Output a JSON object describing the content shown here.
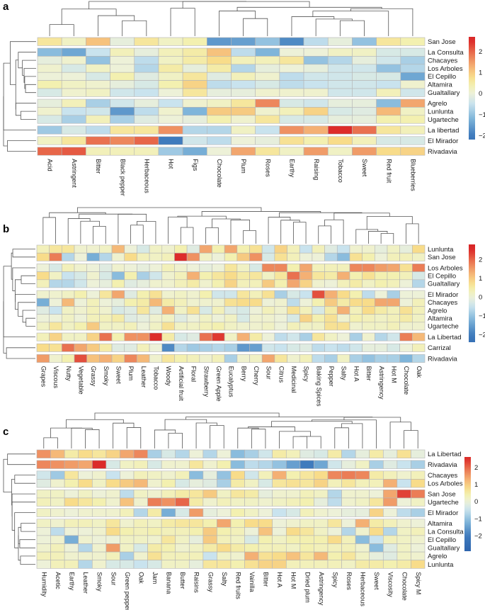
{
  "chart_data": [
    {
      "type": "heatmap",
      "panel_label": "a",
      "rows": [
        "San Jose",
        "La Consulta",
        "Chacayes",
        "Los Arboles",
        "El Cepillo",
        "Altamira",
        "Gualtallary",
        "Agrelo",
        "Lunlunta",
        "Ugarteche",
        "La libertad",
        "El Mirador",
        "Rivadavia"
      ],
      "row_groups": [
        1,
        6,
        3,
        1,
        1,
        1
      ],
      "columns": [
        "Acid",
        "Astringent",
        "Bitter",
        "Black pepper",
        "Herbaceous",
        "Hot",
        "Figs",
        "Chocolate",
        "Plum",
        "Roses",
        "Earthy",
        "Raising",
        "Tobacco",
        "Sweet",
        "Red fruit",
        "Blueberries"
      ],
      "values": [
        [
          0.6,
          0.2,
          1.1,
          -0.1,
          0.6,
          0.2,
          0.4,
          -1.6,
          -1.5,
          -1.0,
          -1.8,
          -0.6,
          -0.1,
          -1.0,
          0.6,
          0.4
        ],
        [
          -1.1,
          -1.4,
          -0.5,
          0.3,
          -0.1,
          0.3,
          0.5,
          1.1,
          -0.6,
          -1.2,
          0,
          0,
          0.2,
          0.2,
          -0.3,
          -0.3
        ],
        [
          -0.1,
          0.1,
          -1.0,
          0,
          -0.6,
          0.2,
          0.5,
          0.8,
          0.3,
          0.3,
          0.6,
          -1.0,
          -0.7,
          -0.1,
          -0.4,
          -0.8
        ],
        [
          0.1,
          -0.3,
          0.2,
          0,
          -0.7,
          0.5,
          -0.1,
          0.5,
          -0.7,
          -0.1,
          0,
          -0.1,
          -0.4,
          -0.4,
          -1.0,
          -0.7
        ],
        [
          0,
          0,
          -0.3,
          0.4,
          -0.2,
          0.2,
          0.6,
          -0.2,
          0.3,
          0.1,
          -0.6,
          -0.4,
          -0.4,
          -0.3,
          -0.3,
          -1.4
        ],
        [
          0.4,
          0.2,
          0.1,
          -0.1,
          -0.3,
          0.4,
          0.9,
          -0.6,
          -0.5,
          -0.3,
          -0.6,
          -0.5,
          -0.4,
          -0.4,
          -0.5,
          0.1
        ],
        [
          -0.3,
          0.1,
          0.2,
          -0.4,
          -0.5,
          0,
          0.6,
          -0.1,
          -0.1,
          0.1,
          0.1,
          0.1,
          -0.4,
          -0.4,
          0.3,
          -0.4
        ],
        [
          -0.1,
          0.3,
          -0.8,
          -0.4,
          -0.1,
          -0.5,
          0.1,
          0.2,
          0.6,
          1.7,
          -0.3,
          -0.4,
          -0.1,
          -0.1,
          -1.1,
          1.4
        ],
        [
          0.1,
          -0.5,
          -0.4,
          -1.6,
          -0.6,
          0.1,
          -1.2,
          1.0,
          1.0,
          0.1,
          0.3,
          0.9,
          -0.3,
          -0.2,
          1.2,
          0.2
        ],
        [
          -0.3,
          -0.8,
          0.3,
          -0.8,
          -0.2,
          0,
          -0.1,
          0.4,
          0.1,
          0.6,
          -0.3,
          -0.3,
          -0.1,
          -0.1,
          0.4,
          0.4
        ],
        [
          -0.9,
          -0.3,
          -0.6,
          0.6,
          0.6,
          1.6,
          -0.7,
          -0.7,
          0.2,
          -0.5,
          1.6,
          1.3,
          2.5,
          1.9,
          0.6,
          0.3
        ],
        [
          0.2,
          0.6,
          1.9,
          1.7,
          2.0,
          -2.0,
          -0.4,
          -0.6,
          0,
          -0.1,
          0.7,
          0.4,
          0.8,
          0.3,
          -0.3,
          -0.3
        ],
        [
          2.0,
          2.1,
          0.3,
          0.3,
          0.3,
          -0.9,
          -1.3,
          0,
          1.4,
          0.6,
          0.2,
          1.5,
          0.2,
          1.5,
          0.8,
          0.9
        ]
      ],
      "colorbar_ticks": [
        2,
        1,
        0,
        -1,
        -2
      ],
      "color_range": [
        -2.2,
        2.7
      ]
    },
    {
      "type": "heatmap",
      "panel_label": "b",
      "rows": [
        "Lunlunta",
        "San Jose",
        "Los Arboles",
        "El Cepillo",
        "Gualtallary",
        "El Mirador",
        "Chacayes",
        "Agrelo",
        "Altamira",
        "Ugarteche",
        "La Libertad",
        "Carrizal",
        "Rivadavia"
      ],
      "row_groups": [
        2,
        3,
        5,
        1,
        1,
        1
      ],
      "columns": [
        "Grapes",
        "Viscous",
        "Nutty",
        "Vegetable",
        "Grassy",
        "Smoky",
        "Sweet",
        "Plum",
        "Leather",
        "Tobacco",
        "Woody",
        "Artificial fruit",
        "Floral",
        "Strawberry",
        "Green Apple",
        "Eucalyptus",
        "Berry",
        "Cherry",
        "Sour",
        "Citrus",
        "Medicinal",
        "Spicy",
        "Baking Spices",
        "Pepper",
        "Salty",
        "Hot A",
        "Bitter",
        "Astringency",
        "Hot M",
        "Chocolate",
        "Oak"
      ],
      "values": [
        [
          0.3,
          0.6,
          0.6,
          0.1,
          0.1,
          0.2,
          1.2,
          0,
          -0.3,
          0.2,
          0.1,
          0.4,
          -0.2,
          1.4,
          0.4,
          1.4,
          0.4,
          0.7,
          -0.4,
          0.9,
          0.3,
          -0.5,
          0.3,
          -0.2,
          -0.5,
          0.1,
          0.1,
          -0.1,
          0.2,
          -0.1,
          0.8
        ],
        [
          0.8,
          1.8,
          -0.7,
          0,
          -1.3,
          -0.7,
          0.1,
          0.8,
          0.3,
          0.2,
          0.3,
          2.5,
          1.6,
          0.2,
          0,
          0.4,
          1.0,
          1.6,
          -0.3,
          0.7,
          0.3,
          0,
          0,
          -0.7,
          -1.1,
          0.7,
          0.4,
          0,
          0.3,
          0.3,
          0.2
        ],
        [
          0,
          -0.3,
          0.3,
          0.1,
          0,
          -0.2,
          0.1,
          0,
          -0.1,
          0,
          0.3,
          0.1,
          0,
          -0.1,
          0,
          0.6,
          0.2,
          -0.3,
          1.7,
          1.7,
          0.4,
          1.4,
          0.3,
          0.3,
          0.3,
          1.7,
          1.7,
          1.5,
          1.4,
          0.7,
          1.8
        ],
        [
          0.8,
          0.2,
          -0.5,
          -0.3,
          0.1,
          -0.3,
          -1.1,
          0.4,
          -0.8,
          -0.4,
          0.1,
          0.3,
          1.3,
          0.4,
          0.6,
          0.8,
          0.5,
          0.6,
          0.2,
          0.6,
          1.9,
          1.3,
          0.6,
          0.5,
          1.3,
          0.4,
          0.7,
          0.4,
          0.4,
          0.3,
          -0.3
        ],
        [
          0.3,
          -0.7,
          -0.7,
          -0.4,
          0,
          -0.1,
          0.4,
          -0.2,
          -0.1,
          0.1,
          0.1,
          0.3,
          0.5,
          0.1,
          0.4,
          0.9,
          0.3,
          0.3,
          1.0,
          0.4,
          1.4,
          0.9,
          0.1,
          0,
          0.3,
          0.5,
          0.2,
          0.4,
          0.3,
          0,
          -0.7
        ],
        [
          0.1,
          0.1,
          0.2,
          0.4,
          0,
          0.6,
          1.4,
          -0.2,
          0.4,
          0.7,
          0.1,
          0.2,
          0.1,
          0.4,
          -0.4,
          -0.4,
          0.6,
          0.3,
          0.7,
          -0.8,
          -0.3,
          -0.5,
          2.2,
          1.3,
          0.8,
          0.4,
          -0.6,
          0,
          -0.8,
          0,
          0
        ],
        [
          -1.3,
          0,
          1.2,
          0,
          0.3,
          0,
          -0.1,
          0.4,
          0.5,
          1.2,
          0.5,
          0.3,
          0.1,
          0.1,
          0.1,
          0.7,
          0.8,
          0.8,
          0,
          0.1,
          -0.6,
          0,
          0.4,
          1.0,
          0.5,
          0.8,
          0.8,
          1.4,
          1.4,
          0,
          0.3
        ],
        [
          -0.2,
          -0.5,
          0.2,
          0.1,
          0.3,
          0.1,
          -0.3,
          -0.2,
          0.6,
          -0.2,
          1.3,
          0.2,
          0.7,
          -0.3,
          0.3,
          -0.2,
          -0.3,
          0,
          0.3,
          0.1,
          0.7,
          0.3,
          -0.3,
          0.5,
          1.3,
          0.3,
          0.8,
          0.5,
          0.3,
          0.7,
          0.3
        ],
        [
          0,
          0,
          0.2,
          0,
          0.3,
          0.3,
          0.5,
          -0.2,
          -0.1,
          0.1,
          0.2,
          -0.2,
          0,
          0.2,
          0,
          0.2,
          -0.3,
          0.1,
          0.1,
          0,
          -0.3,
          0.9,
          0.4,
          0.7,
          0.1,
          0.4,
          0.3,
          0.2,
          0.3,
          0.5,
          0.2
        ],
        [
          0.2,
          0.6,
          0.2,
          0.4,
          1.0,
          0.2,
          0.2,
          0.3,
          0,
          0.2,
          0.7,
          0.2,
          0.2,
          0.3,
          0.4,
          0.2,
          0.1,
          0.1,
          0.2,
          0,
          0.3,
          0.2,
          0.2,
          0.7,
          0.7,
          0.1,
          0.2,
          0.2,
          0.3,
          0.1,
          0.1
        ],
        [
          0.3,
          0.9,
          0.2,
          0.2,
          0.9,
          1.9,
          0.4,
          1.6,
          1.6,
          2.5,
          0.5,
          -0.3,
          -0.2,
          1.9,
          2.4,
          0.2,
          1.3,
          0.5,
          0,
          -0.6,
          -0.4,
          -0.8,
          0.6,
          0.2,
          0,
          -0.8,
          0.1,
          -0.7,
          -0.4,
          1.8,
          1.2
        ],
        [
          0.8,
          0.7,
          1.9,
          1.4,
          1.0,
          0.5,
          -0.2,
          -0.2,
          0.3,
          0,
          -1.8,
          -0.7,
          -0.9,
          -0.8,
          -0.7,
          -0.8,
          -1.6,
          -1.5,
          -0.4,
          -0.5,
          -0.3,
          -0.2,
          -0.6,
          -0.5,
          -0.6,
          -0.4,
          -0.1,
          -0.1,
          -0.3,
          0,
          0.3
        ],
        [
          1.5,
          0.1,
          0.4,
          2.2,
          1.1,
          1.3,
          0.9,
          1.7,
          1.2,
          0.1,
          0.6,
          0.4,
          0.3,
          0.1,
          0.3,
          -0.8,
          0.1,
          0.2,
          1.4,
          0.6,
          0.1,
          0.3,
          -0.6,
          -0.8,
          0.2,
          -0.8,
          -1.0,
          -0.8,
          -0.8,
          -1.2,
          -0.7
        ]
      ],
      "colorbar_ticks": [
        2,
        1,
        0,
        -1,
        -2
      ],
      "color_range": [
        -2.4,
        2.8
      ]
    },
    {
      "type": "heatmap",
      "panel_label": "c",
      "rows": [
        "La Libertad",
        "Rivadavia",
        "Chacayes",
        "Los Arboles",
        "San Jose",
        "Ugarteche",
        "El Mirador",
        "Altamira",
        "La Consulta",
        "El Cepillo",
        "Gualtallary",
        "Agrelo",
        "Lunlunta"
      ],
      "row_groups": [
        1,
        1,
        2,
        2,
        1,
        6
      ],
      "columns": [
        "Humidity",
        "Acetic",
        "Earthy",
        "Leather",
        "Smoky",
        "Sour",
        "Green pepper",
        "Oak",
        "Jam",
        "Banana",
        "Butter",
        "Raisins",
        "Grassy",
        "Salty",
        "Red fruits",
        "Vainilla",
        "Bitter",
        "Hot A",
        "Hot M",
        "Dried plum",
        "Astringency",
        "Spicy",
        "Roses",
        "Herbaceous",
        "Sweet",
        "Viscosity",
        "Chocolate",
        "Spicy M"
      ],
      "values": [
        [
          1.6,
          1.2,
          0.5,
          0.8,
          0.6,
          0.9,
          1.4,
          1.7,
          -0.8,
          -0.3,
          -0.7,
          0,
          -0.7,
          0,
          -1.1,
          -0.8,
          -0.4,
          0.5,
          0.3,
          -0.2,
          -0.3,
          0.5,
          -0.7,
          -0.1,
          0.5,
          -0.1,
          0.7,
          -0.1
        ],
        [
          1.7,
          1.6,
          1.5,
          1.4,
          2.6,
          -0.3,
          0.2,
          0.3,
          -0.3,
          0.1,
          0.1,
          0.6,
          0.1,
          0.4,
          -1.1,
          -0.6,
          -0.7,
          -1.0,
          -1.5,
          -2.0,
          -1.4,
          -0.4,
          -0.1,
          0.2,
          -0.8,
          -0.2,
          -0.5,
          -0.8
        ],
        [
          -0.4,
          -0.9,
          0.6,
          0,
          0.1,
          -0.5,
          0,
          0.3,
          0.2,
          0.1,
          0.3,
          -1.1,
          -0.1,
          -1.0,
          0.8,
          -0.4,
          0.3,
          1.3,
          0.4,
          0.6,
          0.8,
          1.7,
          1.8,
          1.7,
          0.5,
          0.3,
          0.1,
          0.3
        ],
        [
          -0.2,
          0.1,
          0.4,
          0.8,
          0.2,
          0.8,
          1.0,
          1.2,
          0.1,
          0.4,
          -0.3,
          -0.1,
          -0.2,
          -0.8,
          0.5,
          0.2,
          -0.3,
          0.6,
          0.7,
          0.6,
          0.9,
          0.3,
          0.6,
          0.3,
          0.3,
          1.3,
          -0.5,
          0.8
        ],
        [
          0.2,
          0.2,
          0,
          0.2,
          0,
          0.1,
          -0.6,
          0.2,
          0.1,
          0.3,
          0.5,
          0.6,
          1.0,
          0.2,
          0.6,
          0.5,
          -0.1,
          0.1,
          0.1,
          0.3,
          0.2,
          -0.7,
          0.1,
          0.1,
          0,
          1.4,
          2.3,
          1.8
        ],
        [
          0.3,
          0.2,
          0.8,
          0.6,
          0.4,
          0.1,
          1.1,
          0.1,
          1.8,
          1.6,
          2.0,
          0.5,
          0.1,
          0.3,
          0.2,
          0.2,
          0.1,
          0.2,
          0.3,
          0.4,
          -0.1,
          -0.6,
          0.1,
          0.2,
          0.6,
          1.5,
          0,
          0.2
        ],
        [
          0.2,
          0.1,
          0,
          0.1,
          0.1,
          0.1,
          0.3,
          -0.7,
          0.5,
          -1.3,
          -0.3,
          1.5,
          -0.1,
          0,
          0.4,
          0.2,
          0,
          -0.5,
          -0.3,
          0.3,
          0.1,
          0,
          -0.1,
          -0.1,
          0.9,
          0,
          -0.6,
          -0.8
        ],
        [
          0.2,
          0.1,
          0.3,
          0.3,
          0.2,
          0.6,
          0.1,
          0.3,
          0.2,
          0.5,
          0.6,
          0.6,
          0.4,
          1.4,
          0.4,
          0.8,
          0.8,
          0,
          0.1,
          0.2,
          0.2,
          0.6,
          0,
          1.3,
          0.5,
          0.3,
          0.1,
          0
        ],
        [
          0,
          -0.6,
          0,
          0,
          0.1,
          0.8,
          0.4,
          0.3,
          0.4,
          0.3,
          0.3,
          0.4,
          1.0,
          0.4,
          0.3,
          0,
          1.1,
          0,
          0.8,
          0.6,
          0.2,
          0,
          -0.7,
          0.1,
          0.8,
          -0.7,
          0.2,
          0.3
        ],
        [
          0,
          0.1,
          -1.3,
          0.1,
          0,
          0,
          0.2,
          0.2,
          0.1,
          0.6,
          0.2,
          -0.1,
          1.0,
          0.3,
          0.2,
          -0.3,
          0.4,
          0.2,
          0.4,
          0.4,
          0.4,
          0.8,
          0.3,
          -1.1,
          -0.5,
          0.3,
          0.2,
          0.1
        ],
        [
          0.1,
          0.3,
          0,
          -0.7,
          0.1,
          1.5,
          0.2,
          -0.3,
          0.5,
          0.4,
          0.1,
          0.2,
          0.5,
          0.8,
          0.5,
          0.4,
          0.3,
          0.3,
          0.2,
          0.4,
          0.3,
          0.3,
          0.3,
          0.1,
          -1.1,
          -0.2,
          0.2,
          0
        ],
        [
          0.3,
          0.3,
          0.1,
          0.1,
          0.1,
          0.3,
          -0.8,
          0.1,
          0.7,
          0.3,
          0.3,
          0.3,
          -0.5,
          0.2,
          0.1,
          1.3,
          0.7,
          0.8,
          1.1,
          0.6,
          1.2,
          0.4,
          0.6,
          0.2,
          -0.1,
          -0.2,
          0.2,
          0.1
        ],
        [
          0,
          0.3,
          0.3,
          -0.7,
          0.1,
          -0.3,
          -0.3,
          -0.5,
          -0.3,
          0.2,
          0.2,
          -0.1,
          0.6,
          0.6,
          0.4,
          0.7,
          0.9,
          0.9,
          0.3,
          0.3,
          0.3,
          0.3,
          0.2,
          0.5,
          0.5,
          0.4,
          0.5,
          0.8
        ]
      ],
      "colorbar_ticks": [
        2,
        1,
        0,
        -1,
        -2
      ],
      "color_range": [
        -2.9,
        2.6
      ]
    }
  ],
  "colors": {
    "low": "#2c62ab",
    "mid": "#edf1d8",
    "high": "#dd2c2a",
    "cell_border": "#b5b5b5"
  }
}
